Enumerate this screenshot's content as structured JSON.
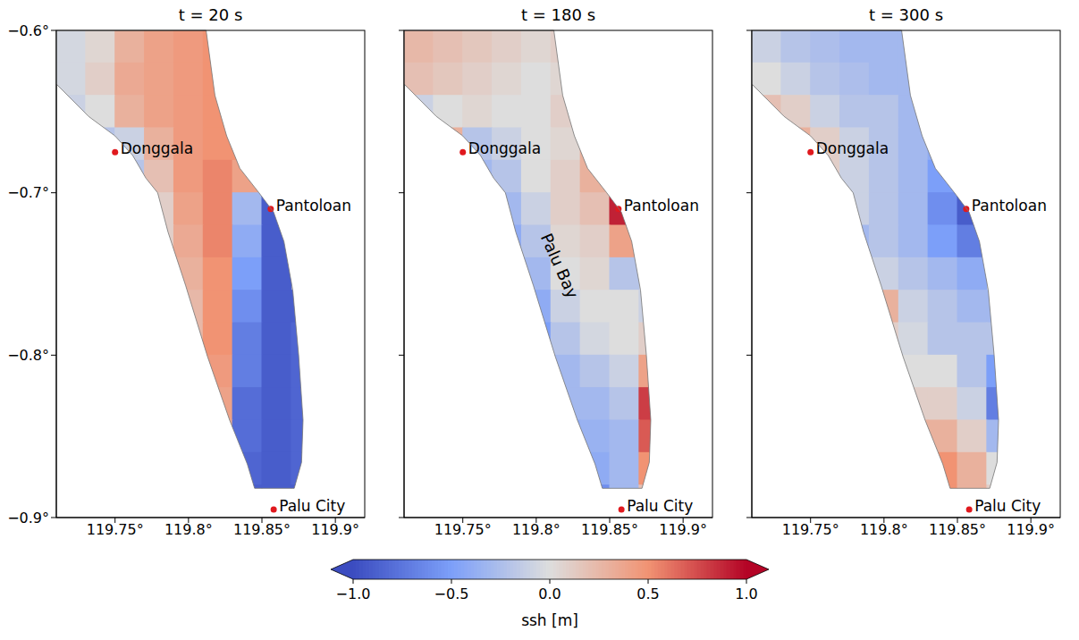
{
  "chart_data": [
    {
      "type": "heatmap",
      "title": "t = 20 s",
      "xlim": [
        119.71,
        119.92
      ],
      "ylim": [
        -0.9,
        -0.6
      ],
      "xticks": [
        {
          "value": 119.75,
          "label": "119.75°"
        },
        {
          "value": 119.8,
          "label": "119.8°"
        },
        {
          "value": 119.85,
          "label": "119.85°"
        },
        {
          "value": 119.9,
          "label": "119.9°"
        }
      ],
      "yticks": [
        {
          "value": -0.9,
          "label": "−0.9°"
        },
        {
          "value": -0.8,
          "label": "−0.8°"
        },
        {
          "value": -0.7,
          "label": "−0.7°"
        },
        {
          "value": -0.6,
          "label": "−0.6°"
        }
      ],
      "ssh": [
        [
          -0.05,
          0.05,
          0.3,
          0.4,
          0.45,
          0.5,
          null,
          null,
          null
        ],
        [
          -0.05,
          0.1,
          0.35,
          0.4,
          0.45,
          0.5,
          null,
          null,
          null
        ],
        [
          -0.1,
          0.0,
          0.3,
          0.4,
          0.45,
          0.5,
          null,
          null,
          null
        ],
        [
          null,
          -0.2,
          -0.1,
          0.3,
          0.45,
          0.5,
          0.5,
          null,
          null
        ],
        [
          null,
          null,
          -0.2,
          0.2,
          0.45,
          0.55,
          0.4,
          null,
          null
        ],
        [
          null,
          null,
          null,
          0.1,
          0.4,
          0.55,
          -0.3,
          -0.9,
          null
        ],
        [
          null,
          null,
          null,
          0.1,
          0.35,
          0.55,
          -0.4,
          -0.9,
          null
        ],
        [
          null,
          null,
          null,
          0.1,
          0.3,
          0.5,
          -0.5,
          -0.9,
          null
        ],
        [
          null,
          null,
          null,
          null,
          0.25,
          0.5,
          -0.6,
          -0.9,
          -0.9
        ],
        [
          null,
          null,
          null,
          null,
          0.25,
          0.5,
          -0.7,
          -0.9,
          -0.85
        ],
        [
          null,
          null,
          null,
          null,
          null,
          0.45,
          -0.7,
          -0.9,
          -0.85
        ],
        [
          null,
          null,
          null,
          null,
          null,
          0.4,
          -0.8,
          -0.9,
          -0.85
        ],
        [
          null,
          null,
          null,
          null,
          null,
          0.35,
          -0.8,
          -0.9,
          -0.85
        ],
        [
          null,
          null,
          null,
          null,
          null,
          null,
          -0.85,
          -0.9,
          -0.85
        ],
        [
          null,
          null,
          null,
          null,
          null,
          null,
          -0.9,
          -0.9,
          -0.9
        ]
      ]
    },
    {
      "type": "heatmap",
      "title": "t = 180 s",
      "xlim": [
        119.71,
        119.92
      ],
      "ylim": [
        -0.9,
        -0.6
      ],
      "tick_labels": "x",
      "xticks": [
        {
          "value": 119.75,
          "label": "119.75°"
        },
        {
          "value": 119.8,
          "label": "119.8°"
        },
        {
          "value": 119.85,
          "label": "119.85°"
        },
        {
          "value": 119.9,
          "label": "119.9°"
        }
      ],
      "yticks": [
        -0.9,
        -0.8,
        -0.7,
        -0.6
      ],
      "annotations": [
        {
          "text": "Palu Bay",
          "lon": 119.816,
          "lat": -0.745
        }
      ],
      "ssh": [
        [
          0.25,
          0.2,
          0.15,
          0.1,
          0.05,
          0.1,
          null,
          null,
          null
        ],
        [
          0.2,
          0.15,
          0.1,
          0.05,
          0.0,
          0.05,
          null,
          null,
          null
        ],
        [
          -0.1,
          0.0,
          0.05,
          0.0,
          0.0,
          0.1,
          null,
          null,
          null
        ],
        [
          null,
          0.3,
          -0.2,
          -0.1,
          0.0,
          0.05,
          0.3,
          null,
          null
        ],
        [
          null,
          null,
          -0.3,
          -0.2,
          0.0,
          0.1,
          0.3,
          null,
          null
        ],
        [
          null,
          null,
          null,
          -0.3,
          -0.1,
          0.1,
          0.2,
          0.9,
          null
        ],
        [
          null,
          null,
          null,
          -0.4,
          -0.2,
          0.05,
          0.1,
          0.4,
          null
        ],
        [
          null,
          null,
          null,
          -0.4,
          -0.3,
          0.0,
          0.05,
          -0.2,
          null
        ],
        [
          null,
          null,
          null,
          null,
          -0.4,
          -0.1,
          0.0,
          0.0,
          -0.1
        ],
        [
          null,
          null,
          null,
          null,
          -0.5,
          -0.2,
          -0.05,
          0.0,
          0.1
        ],
        [
          null,
          null,
          null,
          null,
          null,
          -0.3,
          -0.2,
          -0.1,
          0.4
        ],
        [
          null,
          null,
          null,
          null,
          null,
          -0.3,
          -0.3,
          -0.2,
          0.8
        ],
        [
          null,
          null,
          null,
          null,
          null,
          -0.4,
          -0.35,
          -0.3,
          0.7
        ],
        [
          null,
          null,
          null,
          null,
          null,
          null,
          -0.4,
          -0.3,
          0.5
        ],
        [
          null,
          null,
          null,
          null,
          null,
          null,
          -0.6,
          -0.3,
          0.2
        ]
      ]
    },
    {
      "type": "heatmap",
      "title": "t = 300 s",
      "xlim": [
        119.71,
        119.92
      ],
      "ylim": [
        -0.9,
        -0.6
      ],
      "tick_labels": "x",
      "xticks": [
        {
          "value": 119.75,
          "label": "119.75°"
        },
        {
          "value": 119.8,
          "label": "119.8°"
        },
        {
          "value": 119.85,
          "label": "119.85°"
        },
        {
          "value": 119.9,
          "label": "119.9°"
        }
      ],
      "yticks": [
        -0.9,
        -0.8,
        -0.7,
        -0.6
      ],
      "ssh": [
        [
          -0.1,
          -0.2,
          -0.25,
          -0.3,
          -0.3,
          -0.3,
          null,
          null,
          null
        ],
        [
          0.0,
          -0.1,
          -0.2,
          -0.25,
          -0.3,
          -0.3,
          null,
          null,
          null
        ],
        [
          0.2,
          0.1,
          -0.1,
          -0.2,
          -0.2,
          -0.3,
          null,
          null,
          null
        ],
        [
          null,
          0.3,
          0.1,
          -0.1,
          -0.2,
          -0.3,
          -0.4,
          null,
          null
        ],
        [
          null,
          null,
          0.1,
          -0.1,
          -0.2,
          -0.3,
          -0.5,
          null,
          null
        ],
        [
          null,
          null,
          null,
          -0.1,
          -0.2,
          -0.3,
          -0.6,
          -0.9,
          null
        ],
        [
          null,
          null,
          null,
          -0.3,
          -0.2,
          -0.3,
          -0.5,
          -0.7,
          null
        ],
        [
          null,
          null,
          null,
          -0.3,
          -0.1,
          -0.2,
          -0.3,
          -0.4,
          null
        ],
        [
          null,
          null,
          null,
          null,
          0.3,
          -0.1,
          -0.2,
          -0.3,
          -0.3
        ],
        [
          null,
          null,
          null,
          null,
          0.1,
          -0.05,
          -0.2,
          -0.2,
          -0.2
        ],
        [
          null,
          null,
          null,
          null,
          null,
          0.0,
          0.0,
          -0.2,
          -0.5
        ],
        [
          null,
          null,
          null,
          null,
          null,
          0.1,
          0.1,
          -0.1,
          -0.7
        ],
        [
          null,
          null,
          null,
          null,
          null,
          0.3,
          0.3,
          0.1,
          -0.3
        ],
        [
          null,
          null,
          null,
          null,
          null,
          null,
          0.5,
          0.3,
          0.0
        ],
        [
          null,
          null,
          null,
          null,
          null,
          null,
          0.5,
          0.3,
          0.1
        ]
      ]
    }
  ],
  "map": {
    "cell_lon": [
      119.72,
      119.74,
      119.76,
      119.78,
      119.8,
      119.82,
      119.84,
      119.86,
      119.88
    ],
    "cell_lat": [
      -0.61,
      -0.63,
      -0.65,
      -0.67,
      -0.69,
      -0.71,
      -0.73,
      -0.75,
      -0.77,
      -0.79,
      -0.81,
      -0.83,
      -0.85,
      -0.87,
      -0.89
    ],
    "coastline": [
      [
        119.71,
        -0.6
      ],
      [
        119.71,
        -0.633
      ],
      [
        119.732,
        -0.653
      ],
      [
        119.75,
        -0.665
      ],
      [
        119.762,
        -0.677
      ],
      [
        119.771,
        -0.691
      ],
      [
        119.779,
        -0.7
      ],
      [
        119.786,
        -0.724
      ],
      [
        119.798,
        -0.757
      ],
      [
        119.813,
        -0.801
      ],
      [
        119.828,
        -0.84
      ],
      [
        119.84,
        -0.867
      ],
      [
        119.845,
        -0.882
      ],
      [
        119.872,
        -0.882
      ],
      [
        119.877,
        -0.866
      ],
      [
        119.878,
        -0.84
      ],
      [
        119.875,
        -0.8
      ],
      [
        119.871,
        -0.76
      ],
      [
        119.865,
        -0.73
      ],
      [
        119.858,
        -0.712
      ],
      [
        119.848,
        -0.7
      ],
      [
        119.835,
        -0.685
      ],
      [
        119.826,
        -0.665
      ],
      [
        119.818,
        -0.64
      ],
      [
        119.812,
        -0.6
      ]
    ],
    "places": [
      {
        "name": "Donggala",
        "lon": 119.75,
        "lat": -0.675
      },
      {
        "name": "Pantoloan",
        "lon": 119.856,
        "lat": -0.71
      },
      {
        "name": "Palu City",
        "lon": 119.858,
        "lat": -0.895
      }
    ]
  },
  "colorbar": {
    "label": "ssh [m]",
    "range": [
      -1,
      1
    ],
    "ticks": [
      {
        "value": -1,
        "label": "−1.0"
      },
      {
        "value": -0.5,
        "label": "−0.5"
      },
      {
        "value": 0,
        "label": "0.0"
      },
      0.5,
      {
        "value": 1,
        "label": "1.0"
      }
    ]
  }
}
